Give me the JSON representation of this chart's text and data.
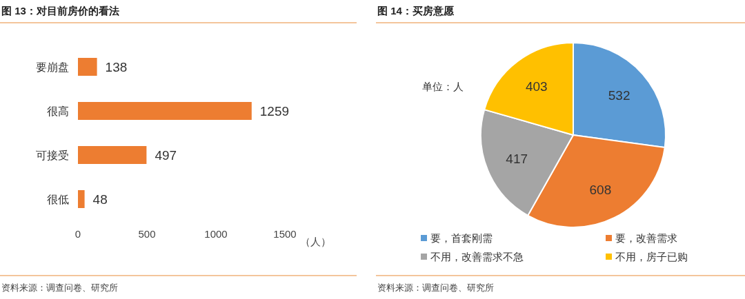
{
  "chart_data": [
    {
      "type": "bar",
      "orientation": "horizontal",
      "title": "图 13：对目前房价的看法",
      "xlabel": "（人）",
      "categories": [
        "要崩盘",
        "很高",
        "可接受",
        "很低"
      ],
      "values": [
        138,
        1259,
        497,
        48
      ],
      "color": "#ed7d31",
      "xlim": [
        0,
        1500
      ],
      "xticks": [
        0,
        500,
        1000,
        1500
      ],
      "data_labels": true,
      "grid": false,
      "annotations": [
        "资料来源：调查问卷、研究所"
      ]
    },
    {
      "type": "pie",
      "title": "图 14：买房意愿",
      "categories": [
        "要，首套刚需",
        "要，改善需求",
        "不用，改善需求不急",
        "不用，房子已购"
      ],
      "values": [
        532,
        608,
        417,
        403
      ],
      "colors": [
        "#5b9bd5",
        "#ed7d31",
        "#a5a5a5",
        "#ffc000"
      ],
      "data_labels": true,
      "legend": "bottom",
      "annotations": [
        "单位：人",
        "资料来源：调查问卷、研究所"
      ]
    }
  ]
}
